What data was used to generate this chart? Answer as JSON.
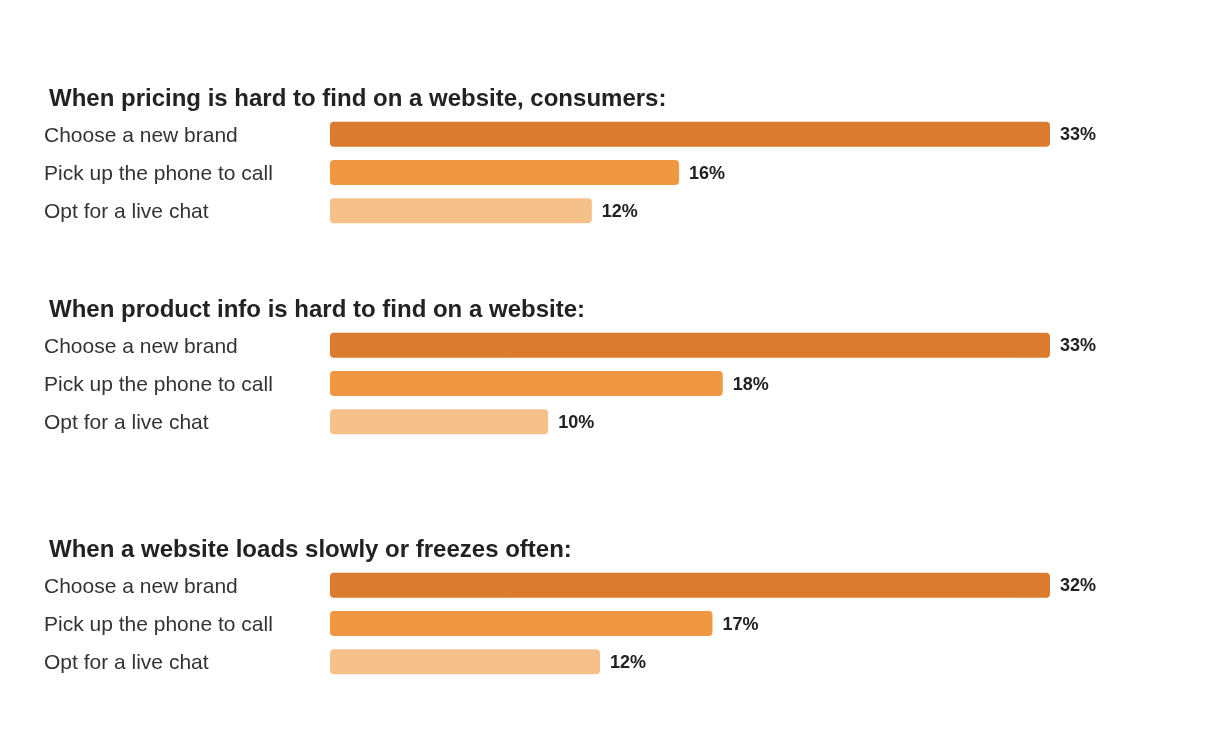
{
  "chart_data": [
    {
      "type": "bar",
      "orientation": "horizontal",
      "title": "When pricing is hard to find on a website, consumers:",
      "categories": [
        "Choose a new brand",
        "Pick up the phone to call",
        "Opt for a live chat"
      ],
      "values": [
        33,
        16,
        12
      ],
      "value_labels": [
        "33%",
        "16%",
        "12%"
      ],
      "colors": [
        "#db7b2f",
        "#f09841",
        "#f6c08a"
      ]
    },
    {
      "type": "bar",
      "orientation": "horizontal",
      "title": "When product info is hard to find on a website:",
      "categories": [
        "Choose a new brand",
        "Pick up the phone to call",
        "Opt for a live chat"
      ],
      "values": [
        33,
        18,
        10
      ],
      "value_labels": [
        "33%",
        "18%",
        "10%"
      ],
      "colors": [
        "#db7b2f",
        "#f09841",
        "#f6c08a"
      ]
    },
    {
      "type": "bar",
      "orientation": "horizontal",
      "title": "When a website loads slowly or freezes often:",
      "categories": [
        "Choose a new brand",
        "Pick up the phone to call",
        "Opt for a live chat"
      ],
      "values": [
        32,
        17,
        12
      ],
      "value_labels": [
        "32%",
        "17%",
        "12%"
      ],
      "colors": [
        "#db7b2f",
        "#f09841",
        "#f6c08a"
      ]
    }
  ]
}
